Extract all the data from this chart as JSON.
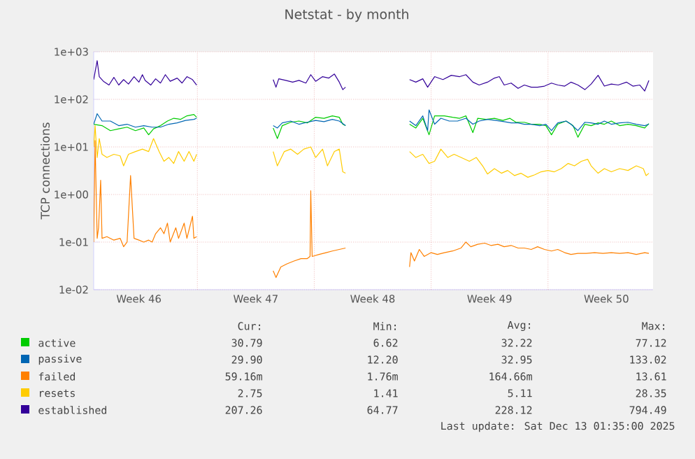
{
  "chart_data": {
    "type": "line",
    "title": "Netstat - by month",
    "ylabel": "TCP connections",
    "log": "y",
    "grid": true,
    "legend": "bottom",
    "marker": "none",
    "line_style": "solid",
    "xlim": [
      "2025-11-09T19:00",
      "2025-12-13T07:00"
    ],
    "ylim": [
      0.01,
      1000
    ],
    "xticks": [
      {
        "value": "2025-11-12T12:00",
        "label": "Week 46"
      },
      {
        "value": "2025-11-16T00:00",
        "label": null
      },
      {
        "value": "2025-11-19T12:00",
        "label": "Week 47"
      },
      {
        "value": "2025-11-23T00:00",
        "label": null
      },
      {
        "value": "2025-11-26T12:00",
        "label": "Week 48"
      },
      {
        "value": "2025-11-30T00:00",
        "label": null
      },
      {
        "value": "2025-12-03T12:00",
        "label": "Week 49"
      },
      {
        "value": "2025-12-07T00:00",
        "label": null
      },
      {
        "value": "2025-12-10T12:00",
        "label": "Week 50"
      }
    ],
    "yticks": [
      {
        "value": 0.01,
        "label": "1e-02"
      },
      {
        "value": 0.1,
        "label": "1e-01"
      },
      {
        "value": 1,
        "label": "1e+00"
      },
      {
        "value": 10,
        "label": "1e+01"
      },
      {
        "value": 100,
        "label": "1e+02"
      },
      {
        "value": 1000,
        "label": "1e+03"
      }
    ],
    "series": [
      {
        "name": "active",
        "color": "#00cc00",
        "x": [
          "2025-11-09T19:00",
          "2025-11-10T07:00",
          "2025-11-10T19:00",
          "2025-11-11T07:00",
          "2025-11-11T19:00",
          "2025-11-12T07:00",
          "2025-11-12T19:00",
          "2025-11-13T02:00",
          "2025-11-13T09:00",
          "2025-11-13T19:00",
          "2025-11-14T05:00",
          "2025-11-14T14:00",
          "2025-11-15T00:00",
          "2025-11-15T09:00",
          "2025-11-15T19:00",
          "2025-11-15T23:00",
          "2025-11-17T19:00",
          "2025-11-20T13:00",
          "2025-11-20T19:00",
          "2025-11-21T02:00",
          "2025-11-21T14:00",
          "2025-11-22T02:00",
          "2025-11-22T14:00",
          "2025-11-23T02:00",
          "2025-11-23T14:00",
          "2025-11-24T02:00",
          "2025-11-24T12:00",
          "2025-11-24T17:00",
          "2025-11-24T21:00",
          "2025-11-26T19:00",
          "2025-11-28T17:00",
          "2025-11-29T02:00",
          "2025-11-29T12:00",
          "2025-11-29T21:00",
          "2025-11-30T05:00",
          "2025-11-30T19:00",
          "2025-12-01T07:00",
          "2025-12-01T17:00",
          "2025-12-02T02:00",
          "2025-12-02T12:00",
          "2025-12-02T19:00",
          "2025-12-03T07:00",
          "2025-12-03T19:00",
          "2025-12-04T07:00",
          "2025-12-04T17:00",
          "2025-12-05T02:00",
          "2025-12-05T14:00",
          "2025-12-06T00:00",
          "2025-12-06T12:00",
          "2025-12-06T21:00",
          "2025-12-07T05:00",
          "2025-12-07T14:00",
          "2025-12-08T02:00",
          "2025-12-08T12:00",
          "2025-12-08T19:00",
          "2025-12-09T05:00",
          "2025-12-09T14:00",
          "2025-12-10T00:00",
          "2025-12-10T09:00",
          "2025-12-10T19:00",
          "2025-12-11T07:00",
          "2025-12-11T19:00",
          "2025-12-12T07:00",
          "2025-12-12T19:00",
          "2025-12-13T01:00"
        ],
        "values": [
          30,
          28,
          22,
          24,
          26,
          22,
          25,
          18,
          24,
          28,
          35,
          40,
          38,
          45,
          48,
          42,
          null,
          25,
          15,
          28,
          33,
          35,
          32,
          42,
          40,
          45,
          42,
          30,
          28,
          null,
          30,
          25,
          40,
          18,
          45,
          45,
          42,
          40,
          45,
          20,
          40,
          38,
          40,
          36,
          40,
          33,
          33,
          30,
          30,
          28,
          18,
          30,
          35,
          28,
          16,
          30,
          28,
          32,
          30,
          35,
          28,
          30,
          28,
          25,
          31
        ]
      },
      {
        "name": "passive",
        "color": "#0066b3",
        "x": [
          "2025-11-09T19:00",
          "2025-11-10T00:00",
          "2025-11-10T07:00",
          "2025-11-10T19:00",
          "2025-11-11T07:00",
          "2025-11-11T19:00",
          "2025-11-12T07:00",
          "2025-11-12T19:00",
          "2025-11-13T07:00",
          "2025-11-13T19:00",
          "2025-11-14T07:00",
          "2025-11-14T19:00",
          "2025-11-15T07:00",
          "2025-11-15T19:00",
          "2025-11-15T23:00",
          "2025-11-17T19:00",
          "2025-11-20T13:00",
          "2025-11-20T19:00",
          "2025-11-21T02:00",
          "2025-11-21T14:00",
          "2025-11-22T02:00",
          "2025-11-22T14:00",
          "2025-11-23T02:00",
          "2025-11-23T14:00",
          "2025-11-24T02:00",
          "2025-11-24T12:00",
          "2025-11-24T21:00",
          "2025-11-26T19:00",
          "2025-11-28T17:00",
          "2025-11-29T02:00",
          "2025-11-29T12:00",
          "2025-11-29T19:00",
          "2025-11-29T21:00",
          "2025-11-30T05:00",
          "2025-11-30T14:00",
          "2025-12-01T02:00",
          "2025-12-01T14:00",
          "2025-12-02T02:00",
          "2025-12-02T12:00",
          "2025-12-02T21:00",
          "2025-12-03T09:00",
          "2025-12-03T21:00",
          "2025-12-04T09:00",
          "2025-12-04T19:00",
          "2025-12-05T05:00",
          "2025-12-05T14:00",
          "2025-12-06T00:00",
          "2025-12-06T12:00",
          "2025-12-06T21:00",
          "2025-12-07T05:00",
          "2025-12-07T14:00",
          "2025-12-08T02:00",
          "2025-12-08T09:00",
          "2025-12-08T19:00",
          "2025-12-09T05:00",
          "2025-12-09T14:00",
          "2025-12-10T00:00",
          "2025-12-10T09:00",
          "2025-12-10T19:00",
          "2025-12-11T07:00",
          "2025-12-11T19:00",
          "2025-12-12T07:00",
          "2025-12-12T19:00",
          "2025-12-13T01:00"
        ],
        "values": [
          30,
          50,
          35,
          35,
          28,
          30,
          26,
          28,
          26,
          26,
          30,
          32,
          36,
          38,
          40,
          null,
          28,
          25,
          32,
          35,
          30,
          33,
          36,
          34,
          38,
          35,
          28,
          null,
          35,
          28,
          45,
          22,
          60,
          30,
          40,
          35,
          35,
          40,
          30,
          35,
          38,
          36,
          34,
          32,
          32,
          30,
          30,
          28,
          30,
          22,
          32,
          35,
          30,
          22,
          33,
          32,
          30,
          35,
          30,
          32,
          33,
          30,
          28,
          30
        ]
      },
      {
        "name": "failed",
        "color": "#ff8000",
        "x": [
          "2025-11-09T19:00",
          "2025-11-09T21:00",
          "2025-11-10T00:00",
          "2025-11-10T02:00",
          "2025-11-10T05:00",
          "2025-11-10T07:00",
          "2025-11-10T14:00",
          "2025-11-11T00:00",
          "2025-11-11T09:00",
          "2025-11-11T14:00",
          "2025-11-11T19:00",
          "2025-11-12T00:00",
          "2025-11-12T05:00",
          "2025-11-12T12:00",
          "2025-11-12T19:00",
          "2025-11-13T02:00",
          "2025-11-13T07:00",
          "2025-11-13T12:00",
          "2025-11-13T19:00",
          "2025-11-14T00:00",
          "2025-11-14T05:00",
          "2025-11-14T09:00",
          "2025-11-14T17:00",
          "2025-11-14T21:00",
          "2025-11-15T05:00",
          "2025-11-15T09:00",
          "2025-11-15T17:00",
          "2025-11-15T19:00",
          "2025-11-15T23:00",
          "2025-11-17T19:00",
          "2025-11-20T13:00",
          "2025-11-20T17:00",
          "2025-11-21T00:00",
          "2025-11-21T09:00",
          "2025-11-21T19:00",
          "2025-11-22T05:00",
          "2025-11-22T14:00",
          "2025-11-22T18:00",
          "2025-11-22T19:00",
          "2025-11-22T21:00",
          "2025-11-23T07:00",
          "2025-11-23T17:00",
          "2025-11-24T02:00",
          "2025-11-24T12:00",
          "2025-11-24T21:00",
          "2025-11-26T19:00",
          "2025-11-28T17:00",
          "2025-11-28T19:00",
          "2025-11-29T00:00",
          "2025-11-29T07:00",
          "2025-11-29T14:00",
          "2025-11-30T00:00",
          "2025-11-30T09:00",
          "2025-11-30T19:00",
          "2025-12-01T07:00",
          "2025-12-01T19:00",
          "2025-12-02T02:00",
          "2025-12-02T09:00",
          "2025-12-02T19:00",
          "2025-12-03T05:00",
          "2025-12-03T14:00",
          "2025-12-04T00:00",
          "2025-12-04T09:00",
          "2025-12-04T19:00",
          "2025-12-05T05:00",
          "2025-12-05T14:00",
          "2025-12-06T00:00",
          "2025-12-06T09:00",
          "2025-12-06T19:00",
          "2025-12-07T05:00",
          "2025-12-07T14:00",
          "2025-12-08T00:00",
          "2025-12-08T09:00",
          "2025-12-08T19:00",
          "2025-12-09T07:00",
          "2025-12-09T19:00",
          "2025-12-10T07:00",
          "2025-12-10T19:00",
          "2025-12-11T07:00",
          "2025-12-11T19:00",
          "2025-12-12T07:00",
          "2025-12-12T19:00",
          "2025-12-13T01:00"
        ],
        "values": [
          0.1,
          13.61,
          0.12,
          0.2,
          2,
          0.12,
          0.13,
          0.11,
          0.12,
          0.08,
          0.1,
          2.5,
          0.12,
          0.11,
          0.1,
          0.11,
          0.1,
          0.15,
          0.2,
          0.15,
          0.25,
          0.1,
          0.2,
          0.12,
          0.25,
          0.12,
          0.35,
          0.12,
          0.13,
          null,
          0.025,
          0.018,
          0.03,
          0.035,
          0.04,
          0.045,
          0.045,
          0.05,
          1.2,
          0.05,
          0.055,
          0.06,
          0.065,
          0.07,
          0.075,
          null,
          0.03,
          0.06,
          0.04,
          0.07,
          0.05,
          0.06,
          0.055,
          0.06,
          0.065,
          0.075,
          0.1,
          0.08,
          0.09,
          0.095,
          0.085,
          0.09,
          0.08,
          0.085,
          0.075,
          0.075,
          0.07,
          0.08,
          0.07,
          0.065,
          0.07,
          0.06,
          0.055,
          0.058,
          0.058,
          0.06,
          0.058,
          0.06,
          0.058,
          0.06,
          0.055,
          0.06,
          0.058
        ]
      },
      {
        "name": "resets",
        "color": "#ffcc00",
        "x": [
          "2025-11-09T19:00",
          "2025-11-09T21:00",
          "2025-11-10T00:00",
          "2025-11-10T03:00",
          "2025-11-10T07:00",
          "2025-11-10T14:00",
          "2025-11-11T00:00",
          "2025-11-11T09:00",
          "2025-11-11T14:00",
          "2025-11-11T21:00",
          "2025-11-12T07:00",
          "2025-11-12T17:00",
          "2025-11-13T02:00",
          "2025-11-13T09:00",
          "2025-11-13T17:00",
          "2025-11-14T00:00",
          "2025-11-14T07:00",
          "2025-11-14T14:00",
          "2025-11-14T21:00",
          "2025-11-15T05:00",
          "2025-11-15T12:00",
          "2025-11-15T19:00",
          "2025-11-15T23:00",
          "2025-11-17T19:00",
          "2025-11-20T13:00",
          "2025-11-20T19:00",
          "2025-11-21T05:00",
          "2025-11-21T14:00",
          "2025-11-22T00:00",
          "2025-11-22T09:00",
          "2025-11-22T19:00",
          "2025-11-23T02:00",
          "2025-11-23T12:00",
          "2025-11-23T19:00",
          "2025-11-24T05:00",
          "2025-11-24T12:00",
          "2025-11-24T17:00",
          "2025-11-24T21:00",
          "2025-11-26T19:00",
          "2025-11-28T17:00",
          "2025-11-29T02:00",
          "2025-11-29T12:00",
          "2025-11-29T21:00",
          "2025-11-30T05:00",
          "2025-11-30T14:00",
          "2025-12-01T00:00",
          "2025-12-01T09:00",
          "2025-12-01T19:00",
          "2025-12-02T07:00",
          "2025-12-02T17:00",
          "2025-12-03T02:00",
          "2025-12-03T09:00",
          "2025-12-03T19:00",
          "2025-12-04T05:00",
          "2025-12-04T14:00",
          "2025-12-05T00:00",
          "2025-12-05T09:00",
          "2025-12-05T19:00",
          "2025-12-06T05:00",
          "2025-12-06T14:00",
          "2025-12-07T00:00",
          "2025-12-07T09:00",
          "2025-12-07T19:00",
          "2025-12-08T05:00",
          "2025-12-08T14:00",
          "2025-12-09T00:00",
          "2025-12-09T09:00",
          "2025-12-09T14:00",
          "2025-12-10T00:00",
          "2025-12-10T09:00",
          "2025-12-10T19:00",
          "2025-12-11T07:00",
          "2025-12-11T19:00",
          "2025-12-12T07:00",
          "2025-12-12T17:00",
          "2025-12-12T21:00",
          "2025-12-13T01:00"
        ],
        "values": [
          10,
          28,
          6,
          15,
          7,
          6,
          7,
          6.5,
          4,
          7,
          8,
          9,
          8,
          15,
          8,
          5,
          6,
          4.5,
          8,
          5,
          8,
          5,
          7,
          null,
          8,
          4,
          8,
          9,
          7,
          9,
          10,
          6,
          9,
          4,
          8,
          9,
          3,
          2.8,
          null,
          8,
          6,
          7,
          4.5,
          5,
          9,
          6,
          7,
          6,
          5,
          6,
          4,
          2.7,
          3.5,
          2.8,
          3.2,
          2.5,
          2.8,
          2.3,
          2.6,
          3,
          3.2,
          3,
          3.5,
          4.5,
          4,
          5,
          5.5,
          4,
          2.8,
          3.5,
          3,
          3.5,
          3.2,
          4,
          3.5,
          2.5,
          2.8
        ]
      },
      {
        "name": "established",
        "color": "#330099",
        "x": [
          "2025-11-09T19:00",
          "2025-11-10T00:00",
          "2025-11-10T03:00",
          "2025-11-10T09:00",
          "2025-11-10T17:00",
          "2025-11-11T00:00",
          "2025-11-11T07:00",
          "2025-11-11T14:00",
          "2025-11-11T21:00",
          "2025-11-12T05:00",
          "2025-11-12T12:00",
          "2025-11-12T17:00",
          "2025-11-12T21:00",
          "2025-11-13T05:00",
          "2025-11-13T12:00",
          "2025-11-13T19:00",
          "2025-11-14T02:00",
          "2025-11-14T09:00",
          "2025-11-14T19:00",
          "2025-11-15T02:00",
          "2025-11-15T09:00",
          "2025-11-15T17:00",
          "2025-11-15T23:00",
          "2025-11-17T19:00",
          "2025-11-20T13:00",
          "2025-11-20T17:00",
          "2025-11-20T21:00",
          "2025-11-21T07:00",
          "2025-11-21T17:00",
          "2025-11-22T02:00",
          "2025-11-22T12:00",
          "2025-11-22T19:00",
          "2025-11-23T02:00",
          "2025-11-23T12:00",
          "2025-11-23T21:00",
          "2025-11-24T05:00",
          "2025-11-24T12:00",
          "2025-11-24T17:00",
          "2025-11-24T21:00",
          "2025-11-26T19:00",
          "2025-11-28T17:00",
          "2025-11-29T02:00",
          "2025-11-29T12:00",
          "2025-11-29T19:00",
          "2025-11-30T05:00",
          "2025-11-30T17:00",
          "2025-12-01T05:00",
          "2025-12-01T17:00",
          "2025-12-02T02:00",
          "2025-12-02T12:00",
          "2025-12-02T21:00",
          "2025-12-03T09:00",
          "2025-12-03T19:00",
          "2025-12-04T02:00",
          "2025-12-04T09:00",
          "2025-12-04T19:00",
          "2025-12-05T05:00",
          "2025-12-05T14:00",
          "2025-12-06T00:00",
          "2025-12-06T09:00",
          "2025-12-06T19:00",
          "2025-12-07T05:00",
          "2025-12-07T14:00",
          "2025-12-08T00:00",
          "2025-12-08T09:00",
          "2025-12-08T19:00",
          "2025-12-09T05:00",
          "2025-12-09T14:00",
          "2025-12-10T00:00",
          "2025-12-10T09:00",
          "2025-12-10T19:00",
          "2025-12-11T05:00",
          "2025-12-11T17:00",
          "2025-12-12T02:00",
          "2025-12-12T12:00",
          "2025-12-12T19:00",
          "2025-12-13T01:00"
        ],
        "values": [
          260,
          650,
          300,
          240,
          200,
          290,
          200,
          260,
          210,
          300,
          230,
          330,
          250,
          200,
          270,
          220,
          330,
          240,
          280,
          220,
          300,
          260,
          200,
          null,
          260,
          180,
          270,
          250,
          230,
          250,
          220,
          330,
          240,
          300,
          280,
          340,
          230,
          160,
          180,
          null,
          260,
          230,
          270,
          180,
          300,
          260,
          320,
          300,
          330,
          230,
          200,
          230,
          280,
          300,
          200,
          220,
          170,
          200,
          180,
          180,
          190,
          220,
          200,
          190,
          230,
          200,
          160,
          210,
          320,
          190,
          210,
          200,
          230,
          190,
          200,
          150,
          250
        ]
      }
    ],
    "annotations": [
      "Cur:",
      "Min:",
      "Avg:",
      "Max:",
      "30.79",
      "6.62",
      "32.22",
      "77.12",
      "29.90",
      "12.20",
      "32.95",
      "133.02",
      "59.16m",
      "1.76m",
      "164.66m",
      "13.61",
      "2.75",
      "1.41",
      "5.11",
      "28.35",
      "207.26",
      "64.77",
      "228.12",
      "794.49",
      "Last update:  Sat Dec 13 01:35:00 2025"
    ]
  }
}
